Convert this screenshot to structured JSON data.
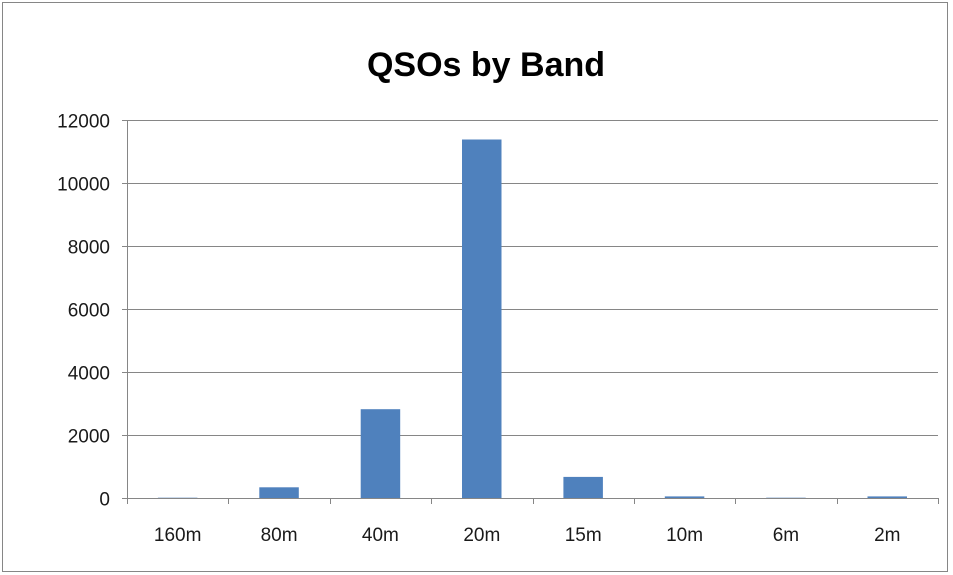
{
  "chart_data": {
    "type": "bar",
    "title": "QSOs by Band",
    "xlabel": "",
    "ylabel": "",
    "categories": [
      "160m",
      "80m",
      "40m",
      "20m",
      "15m",
      "10m",
      "6m",
      "2m"
    ],
    "values": [
      10,
      340,
      2820,
      11380,
      670,
      50,
      10,
      50
    ],
    "ylim": [
      0,
      12000
    ],
    "yticks": [
      "0",
      "2000",
      "4000",
      "6000",
      "8000",
      "10000",
      "12000"
    ],
    "grid": true,
    "legend": "none",
    "colors": {
      "bar": "#4f81bd",
      "grid": "#868686",
      "axis": "#868686"
    }
  }
}
